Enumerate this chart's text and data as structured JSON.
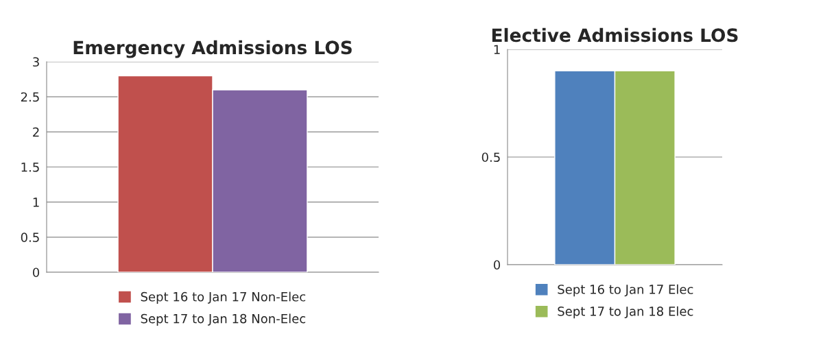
{
  "chart_data": [
    {
      "type": "bar",
      "title": "Emergency Admissions LOS",
      "categories": [
        null
      ],
      "series": [
        {
          "name": "Sept 16 to Jan 17 Non-Elec",
          "color": "#c0504d",
          "values": [
            2.8
          ]
        },
        {
          "name": "Sept 17 to Jan 18 Non-Elec",
          "color": "#8064a2",
          "values": [
            2.6
          ]
        }
      ],
      "ylim": [
        0,
        3
      ],
      "yticks": [
        0,
        0.5,
        1,
        1.5,
        2,
        2.5,
        3
      ],
      "grid": "y",
      "legend": "bottom"
    },
    {
      "type": "bar",
      "title": "Elective Admissions LOS",
      "categories": [
        null
      ],
      "series": [
        {
          "name": "Sept 16 to Jan 17 Elec",
          "color": "#4f81bd",
          "values": [
            0.9
          ]
        },
        {
          "name": "Sept 17 to Jan 18 Elec",
          "color": "#9bbb59",
          "values": [
            0.9
          ]
        }
      ],
      "ylim": [
        0,
        1
      ],
      "yticks": [
        0,
        0.5,
        1
      ],
      "grid": "y",
      "legend": "bottom"
    }
  ]
}
